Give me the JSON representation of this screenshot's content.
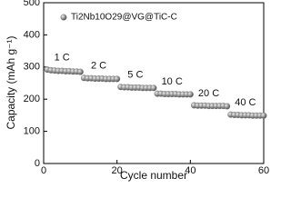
{
  "chart_data": {
    "type": "scatter",
    "x_label": "Cycle number",
    "y_label": "Capacity (mAh g⁻¹)",
    "x": [
      1,
      2,
      3,
      4,
      5,
      6,
      7,
      8,
      9,
      10,
      11,
      12,
      13,
      14,
      15,
      16,
      17,
      18,
      19,
      20,
      21,
      22,
      23,
      24,
      25,
      26,
      27,
      28,
      29,
      30,
      31,
      32,
      33,
      34,
      35,
      36,
      37,
      38,
      39,
      40,
      41,
      42,
      43,
      44,
      45,
      46,
      47,
      48,
      49,
      50,
      51,
      52,
      53,
      54,
      55,
      56,
      57,
      58,
      59,
      60
    ],
    "series": [
      {
        "name": "Ti2Nb10O29@VG@TiC-C",
        "color": "#808080",
        "values": [
          292,
          290,
          289,
          288,
          288,
          287,
          287,
          286,
          286,
          285,
          266,
          265,
          265,
          264,
          264,
          264,
          263,
          263,
          263,
          263,
          238,
          237,
          237,
          236,
          236,
          236,
          235,
          235,
          235,
          235,
          217,
          217,
          216,
          216,
          216,
          216,
          215,
          215,
          215,
          215,
          181,
          180,
          180,
          180,
          179,
          179,
          179,
          179,
          179,
          178,
          152,
          151,
          151,
          150,
          150,
          150,
          149,
          149,
          149,
          149
        ]
      }
    ],
    "annotations": [
      "1 C",
      "2 C",
      "5 C",
      "10 C",
      "20 C",
      "40 C"
    ],
    "xlim": [
      0,
      60
    ],
    "xticks": [
      0,
      20,
      40,
      60
    ],
    "ylim": [
      0,
      500
    ],
    "yticks": [
      0,
      100,
      200,
      300,
      400,
      500
    ],
    "grid": false,
    "legend": "upper left"
  }
}
